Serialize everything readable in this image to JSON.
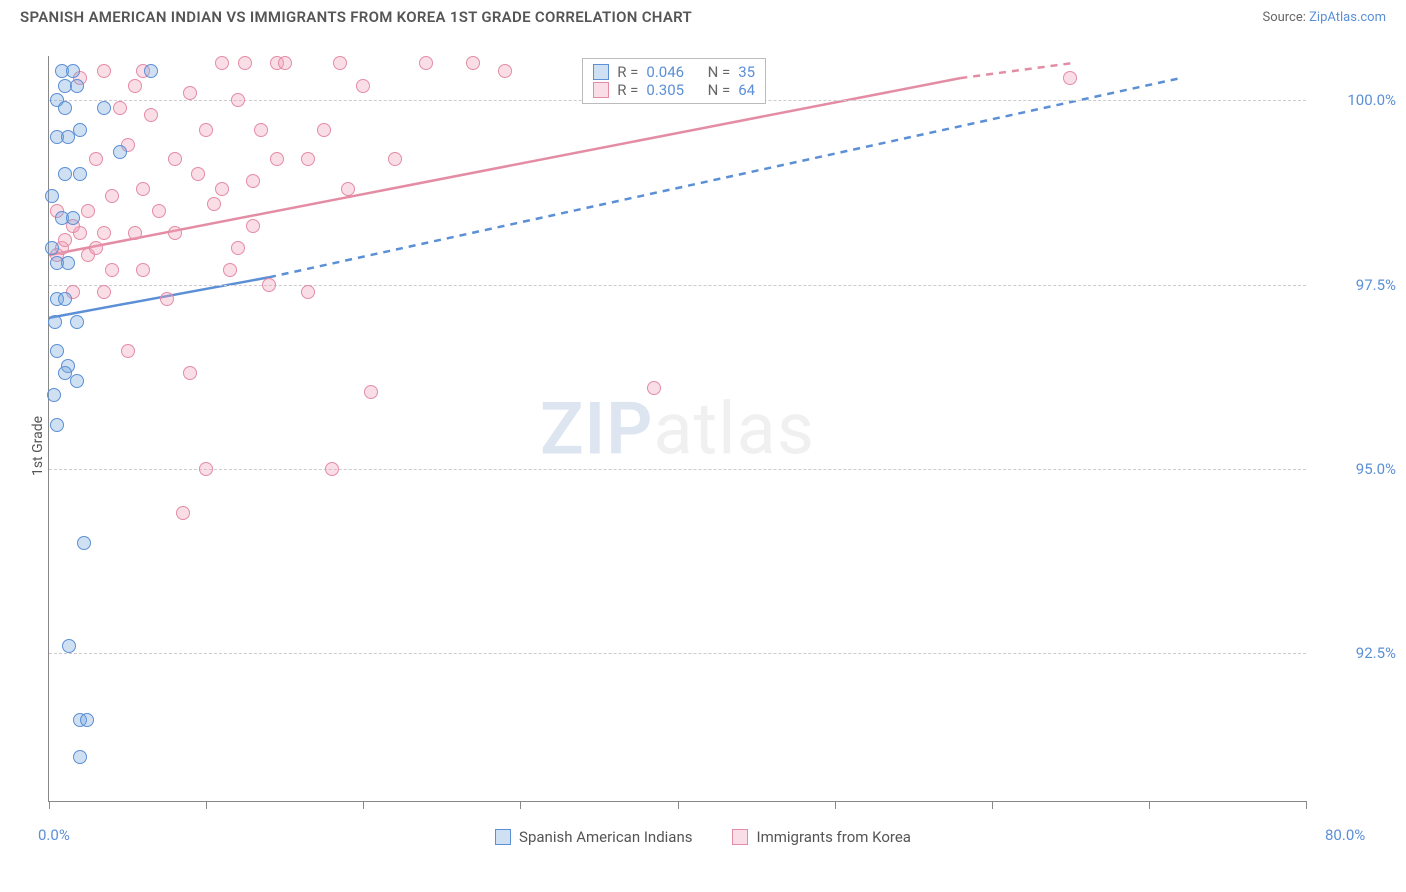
{
  "title": "SPANISH AMERICAN INDIAN VS IMMIGRANTS FROM KOREA 1ST GRADE CORRELATION CHART",
  "source_label": "Source: ",
  "source_link": "ZipAtlas.com",
  "watermark": {
    "bold": "ZIP",
    "light": "atlas"
  },
  "ylabel": "1st Grade",
  "axes": {
    "xmin": 0,
    "xmax": 80,
    "ymin": 90.5,
    "ymax": 100.6,
    "x_ticks": [
      0,
      10,
      20,
      30,
      40,
      50,
      60,
      70,
      80
    ],
    "x_tick_labels_shown": {
      "0": "0.0%",
      "80": "80.0%"
    },
    "y_ticks": [
      92.5,
      95.0,
      97.5,
      100.0
    ],
    "y_tick_labels": [
      "92.5%",
      "95.0%",
      "97.5%",
      "100.0%"
    ],
    "grid_color": "#cccccc",
    "axis_color": "#888888"
  },
  "series": {
    "blue": {
      "label": "Spanish American Indians",
      "color_stroke": "#5b8fd6",
      "color_fill": "rgba(120,165,220,0.35)",
      "R": "0.046",
      "N": "35",
      "trend_solid": {
        "x1": 0,
        "y1": 97.05,
        "x2": 14,
        "y2": 97.6
      },
      "trend_dash": {
        "x1": 14,
        "y1": 97.6,
        "x2": 72,
        "y2": 100.3
      },
      "points": [
        [
          0.5,
          99.5
        ],
        [
          1.2,
          99.5
        ],
        [
          2.0,
          99.6
        ],
        [
          6.5,
          100.4
        ],
        [
          1.0,
          99.0
        ],
        [
          2.0,
          99.0
        ],
        [
          0.8,
          98.4
        ],
        [
          1.5,
          98.4
        ],
        [
          0.5,
          97.8
        ],
        [
          1.2,
          97.8
        ],
        [
          0.5,
          97.3
        ],
        [
          1.0,
          97.3
        ],
        [
          1.8,
          97.0
        ],
        [
          0.5,
          96.6
        ],
        [
          1.2,
          96.4
        ],
        [
          1.0,
          96.3
        ],
        [
          1.8,
          96.2
        ],
        [
          0.5,
          95.6
        ],
        [
          2.2,
          94.0
        ],
        [
          1.3,
          92.6
        ],
        [
          2.0,
          91.6
        ],
        [
          2.4,
          91.6
        ],
        [
          2.0,
          91.1
        ],
        [
          0.8,
          100.4
        ],
        [
          1.5,
          100.4
        ],
        [
          1.0,
          100.2
        ],
        [
          1.8,
          100.2
        ],
        [
          0.5,
          100.0
        ],
        [
          1.0,
          99.9
        ],
        [
          3.5,
          99.9
        ],
        [
          4.5,
          99.3
        ],
        [
          0.2,
          98.0
        ],
        [
          0.2,
          98.7
        ],
        [
          0.3,
          96.0
        ],
        [
          0.4,
          97.0
        ]
      ]
    },
    "pink": {
      "label": "Immigrants from Korea",
      "color_stroke": "#e48ca4",
      "color_fill": "rgba(240,160,185,0.35)",
      "R": "0.305",
      "N": "64",
      "trend_solid": {
        "x1": 0,
        "y1": 97.9,
        "x2": 58,
        "y2": 100.3
      },
      "trend_dash": {
        "x1": 58,
        "y1": 100.3,
        "x2": 65,
        "y2": 100.5
      },
      "points": [
        [
          11.0,
          100.5
        ],
        [
          12.5,
          100.5
        ],
        [
          14.5,
          100.5
        ],
        [
          15.0,
          100.5
        ],
        [
          18.5,
          100.5
        ],
        [
          24.0,
          100.5
        ],
        [
          27.0,
          100.5
        ],
        [
          29.0,
          100.4
        ],
        [
          5.5,
          100.2
        ],
        [
          9.0,
          100.1
        ],
        [
          12.0,
          100.0
        ],
        [
          10.0,
          99.6
        ],
        [
          13.5,
          99.6
        ],
        [
          3.0,
          99.2
        ],
        [
          8.0,
          99.2
        ],
        [
          14.5,
          99.2
        ],
        [
          16.5,
          99.2
        ],
        [
          4.0,
          98.7
        ],
        [
          6.0,
          98.8
        ],
        [
          11.0,
          98.8
        ],
        [
          13.0,
          98.9
        ],
        [
          10.5,
          98.6
        ],
        [
          2.0,
          98.2
        ],
        [
          3.5,
          98.2
        ],
        [
          5.5,
          98.2
        ],
        [
          8.0,
          98.2
        ],
        [
          12.0,
          98.0
        ],
        [
          0.5,
          97.9
        ],
        [
          2.5,
          97.9
        ],
        [
          4.0,
          97.7
        ],
        [
          6.0,
          97.7
        ],
        [
          14.0,
          97.5
        ],
        [
          1.5,
          97.4
        ],
        [
          3.5,
          97.4
        ],
        [
          7.5,
          97.3
        ],
        [
          16.5,
          97.4
        ],
        [
          5.0,
          96.6
        ],
        [
          9.0,
          96.3
        ],
        [
          10.0,
          95.0
        ],
        [
          18.0,
          95.0
        ],
        [
          8.5,
          94.4
        ],
        [
          20.5,
          96.05
        ],
        [
          38.5,
          96.1
        ],
        [
          3.0,
          98.0
        ],
        [
          0.8,
          98.0
        ],
        [
          1.5,
          98.3
        ],
        [
          2.5,
          98.5
        ],
        [
          0.5,
          98.5
        ],
        [
          1.0,
          98.1
        ],
        [
          22.0,
          99.2
        ],
        [
          19.0,
          98.8
        ],
        [
          17.5,
          99.6
        ],
        [
          20.0,
          100.2
        ],
        [
          6.5,
          99.8
        ],
        [
          5.0,
          99.4
        ],
        [
          7.0,
          98.5
        ],
        [
          9.5,
          99.0
        ],
        [
          11.5,
          97.7
        ],
        [
          13.0,
          98.3
        ],
        [
          4.5,
          99.9
        ],
        [
          2.0,
          100.3
        ],
        [
          3.5,
          100.4
        ],
        [
          6.0,
          100.4
        ],
        [
          65.0,
          100.3
        ]
      ]
    }
  },
  "legend_box": {
    "R_label": "R =",
    "N_label": "N ="
  },
  "colors": {
    "text": "#555555",
    "link": "#5b8fd6",
    "background": "#ffffff"
  }
}
